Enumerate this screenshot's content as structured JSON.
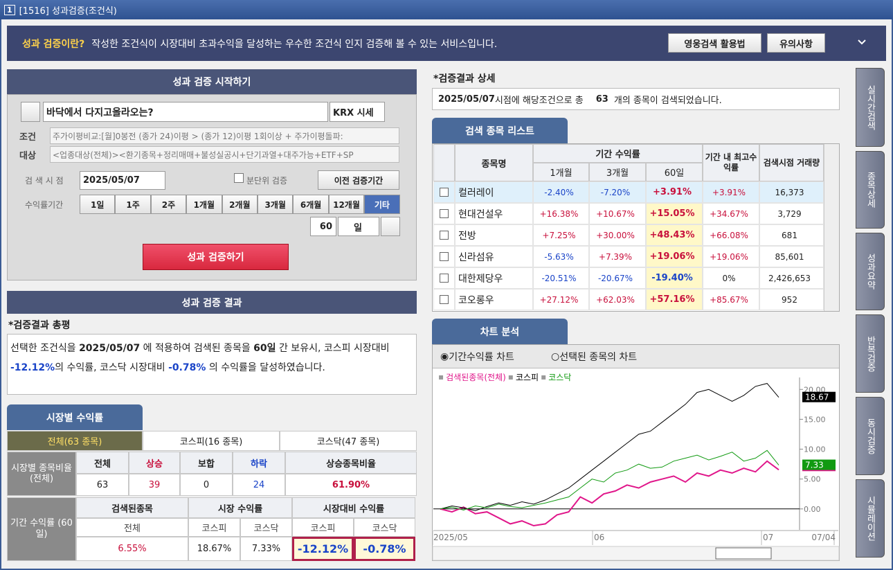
{
  "window": {
    "number": "1",
    "title": "[1516] 성과검증(조건식)"
  },
  "banner": {
    "label": "성과 검증이란?",
    "text": "작성한 조건식이 시장대비 초과수익을 달성하는 우수한 조건식 인지 검증해 볼 수 있는 서비스입니다.",
    "buttons": [
      "영웅검색 활용법",
      "유의사항"
    ]
  },
  "start": {
    "heading": "성과 검증 시작하기",
    "condition_name": "바닥에서 다지고올라오는?",
    "market": "KRX 시세",
    "cond_label": "조건",
    "cond_text": "주가이평비교:[월]0봉전 (종가 24)이평 > (종가 12)이평 1회이상 + 주가이평돌파:",
    "target_label": "대상",
    "target_text": "<업종대상(전체)><환기종목+정리매매+불성실공시+단기과열+대주가능+ETF+SP",
    "date_label": "검 색 시 점",
    "date": "2025/05/07",
    "minute_check": "분단위 검증",
    "prev_button": "이전 검증기간",
    "period_label": "수익률기간",
    "periods": [
      "1일",
      "1주",
      "2주",
      "1개월",
      "2개월",
      "3개월",
      "6개월",
      "12개월",
      "기타"
    ],
    "days": "60",
    "day_unit": "일",
    "run_button": "성과 검증하기"
  },
  "result": {
    "heading": "성과 검증 결과",
    "summary_title": "*검증결과 총평",
    "summary": [
      "선택한 조건식을 ",
      "2025/05/07",
      " 에 적용하여 검색된 종목을 ",
      "60일",
      " 간 보유시, 코스피 시장대비 ",
      "-12.12%",
      "의 수익률, 코스닥 시장대비 ",
      "-0.78%",
      " 의 수익률을 달성하였습니다."
    ]
  },
  "market_returns": {
    "tab": "시장별 수익률",
    "subtabs": [
      "전체(63 종목)",
      "코스피(16 종목)",
      "코스닥(47 종목)"
    ],
    "ratio": {
      "label": "시장별 종목비율 (전체)",
      "headers": [
        "전체",
        "상승",
        "보합",
        "하락",
        "상승종목비율"
      ],
      "values": [
        "63",
        "39",
        "0",
        "24",
        "61.90%"
      ]
    },
    "period": {
      "label": "기간 수익률 (60일)",
      "groups": [
        "검색된종목",
        "시장 수익률",
        "시장대비 수익률"
      ],
      "sub": [
        "전체",
        "코스피",
        "코스닥",
        "코스피",
        "코스닥"
      ],
      "values": [
        "6.55%",
        "18.67%",
        "7.33%",
        "-12.12%",
        "-0.78%"
      ]
    }
  },
  "detail": {
    "title": "*검증결과 상세",
    "text": [
      "2025/05/07",
      " 시점에 해당조건으로 총 ",
      "63",
      " 개의 종목이 검색되었습니다."
    ]
  },
  "stock_list": {
    "tab": "검색 종목 리스트",
    "headers": {
      "name": "종목명",
      "period": "기간 수익률",
      "m1": "1개월",
      "m3": "3개월",
      "d60": "60일",
      "max": "기간 내 최고수익률",
      "volume": "검색시점 거래량"
    },
    "rows": [
      [
        "컬러레이",
        "-2.40%",
        "-7.20%",
        "+3.91%",
        "+3.91%",
        "16,373"
      ],
      [
        "현대건설우",
        "+16.38%",
        "+10.67%",
        "+15.05%",
        "+34.67%",
        "3,729"
      ],
      [
        "전방",
        "+7.25%",
        "+30.00%",
        "+48.43%",
        "+66.08%",
        "681"
      ],
      [
        "신라섬유",
        "-5.63%",
        "+7.39%",
        "+19.06%",
        "+19.06%",
        "85,601"
      ],
      [
        "대한제당우",
        "-20.51%",
        "-20.67%",
        "-19.40%",
        "0%",
        "2,426,653"
      ],
      [
        "코오롱우",
        "+27.12%",
        "+62.03%",
        "+57.16%",
        "+85.67%",
        "952"
      ]
    ]
  },
  "chart": {
    "tab": "차트 분석",
    "radios": [
      "기간수익률 차트",
      "선택된 종목의 차트"
    ],
    "type": "line",
    "ylim": [
      -3.5,
      22
    ],
    "yticks": [
      {
        "value": 0,
        "label": "0.00"
      },
      {
        "value": 5,
        "label": "5.00"
      },
      {
        "value": 10,
        "label": "10.00"
      },
      {
        "value": 15,
        "label": "15.00"
      },
      {
        "value": 20,
        "label": "20.00"
      }
    ],
    "x_labels": [
      "2025/05",
      "06",
      "07",
      "07/04"
    ],
    "series": [
      {
        "name": "검색된종목(전체)",
        "color": "#e0168a",
        "values": [
          0,
          -0.5,
          0.3,
          -0.8,
          -0.5,
          -1.5,
          -2.5,
          -2.0,
          -2.8,
          -2.5,
          -1.0,
          -0.5,
          2.0,
          1.0,
          2.5,
          3.0,
          4.0,
          3.5,
          4.5,
          5.0,
          5.5,
          4.5,
          6.0,
          5.5,
          6.5,
          6.0,
          6.8,
          6.2,
          8.0,
          6.55
        ]
      },
      {
        "name": "코스피",
        "color": "#000000",
        "values": [
          0,
          0.5,
          0.2,
          -0.3,
          0.4,
          1.0,
          0.6,
          1.2,
          0.8,
          1.5,
          2.5,
          3.5,
          5.0,
          6.5,
          8.0,
          9.5,
          11.0,
          12.5,
          13.0,
          14.5,
          16.0,
          17.5,
          19.5,
          20.0,
          19.0,
          18.0,
          19.0,
          20.5,
          21.0,
          18.67
        ],
        "end_label": "18.67"
      },
      {
        "name": "코스닥",
        "color": "#119a11",
        "values": [
          0,
          0.3,
          -0.2,
          0.5,
          0.2,
          0.8,
          0.4,
          0.2,
          0.6,
          1.0,
          1.5,
          2.0,
          3.5,
          5.0,
          4.5,
          6.0,
          6.5,
          7.5,
          6.8,
          7.0,
          8.0,
          8.5,
          9.0,
          8.2,
          8.8,
          9.5,
          8.0,
          8.5,
          9.8,
          7.33
        ],
        "end_label": "7.33"
      }
    ]
  },
  "side_tabs": [
    "실시간검색",
    "종목상세",
    "성과요약",
    "반복검증",
    "동시검증",
    "시뮬레이션"
  ]
}
